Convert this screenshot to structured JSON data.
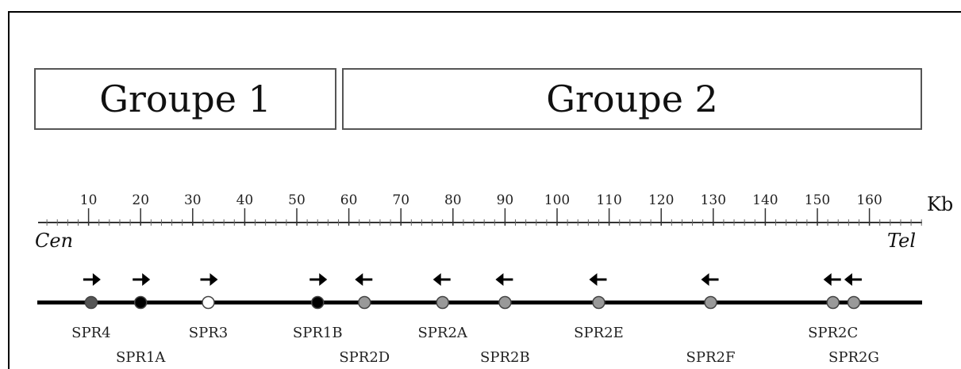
{
  "groups": [
    {
      "label": "Groupe 1"
    },
    {
      "label": "Groupe 2"
    }
  ],
  "scale": {
    "unit": "Kb",
    "left_label": "Cen",
    "right_label": "Tel",
    "ticks": [
      10,
      20,
      30,
      40,
      50,
      60,
      70,
      80,
      90,
      100,
      110,
      120,
      130,
      140,
      150,
      160
    ],
    "range": [
      0,
      170
    ]
  },
  "genes": [
    {
      "name": "SPR4",
      "pos_kb": 10.5,
      "direction": "right",
      "fill": "#555555",
      "label_row": 1
    },
    {
      "name": "SPR1A",
      "pos_kb": 20,
      "direction": "right",
      "fill": "#000000",
      "label_row": 2
    },
    {
      "name": "SPR3",
      "pos_kb": 33,
      "direction": "right",
      "fill": "#ffffff",
      "label_row": 1
    },
    {
      "name": "SPR1B",
      "pos_kb": 54,
      "direction": "right",
      "fill": "#000000",
      "label_row": 1
    },
    {
      "name": "SPR2D",
      "pos_kb": 63,
      "direction": "left",
      "fill": "#999999",
      "label_row": 2
    },
    {
      "name": "SPR2A",
      "pos_kb": 78,
      "direction": "left",
      "fill": "#999999",
      "label_row": 1
    },
    {
      "name": "SPR2B",
      "pos_kb": 90,
      "direction": "left",
      "fill": "#999999",
      "label_row": 2
    },
    {
      "name": "SPR2E",
      "pos_kb": 108,
      "direction": "left",
      "fill": "#999999",
      "label_row": 1
    },
    {
      "name": "SPR2F",
      "pos_kb": 129.5,
      "direction": "left",
      "fill": "#999999",
      "label_row": 2
    },
    {
      "name": "SPR2C",
      "pos_kb": 153,
      "direction": "left",
      "fill": "#999999",
      "label_row": 1
    },
    {
      "name": "SPR2G",
      "pos_kb": 157,
      "direction": "left",
      "fill": "#999999",
      "label_row": 2
    }
  ]
}
